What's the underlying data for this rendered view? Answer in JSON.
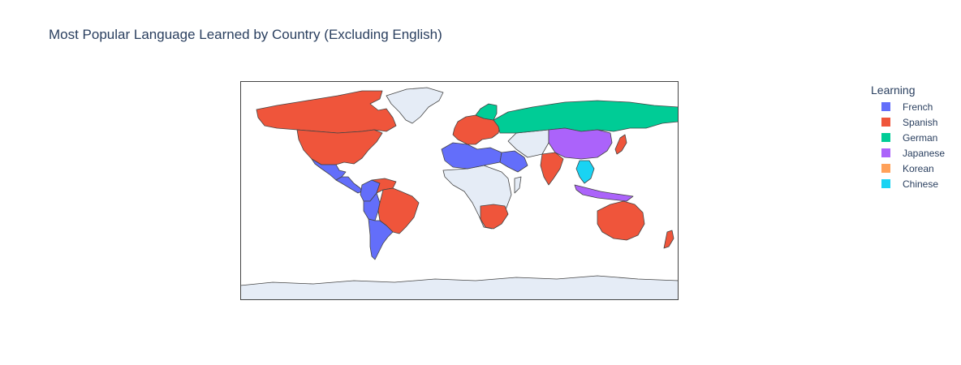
{
  "title": "Most Popular Language Learned by Country (Excluding English)",
  "legend": {
    "title": "Learning",
    "items": [
      {
        "label": "French",
        "color": "#636efa"
      },
      {
        "label": "Spanish",
        "color": "#ef553b"
      },
      {
        "label": "German",
        "color": "#00cc96"
      },
      {
        "label": "Japanese",
        "color": "#ab63fa"
      },
      {
        "label": "Korean",
        "color": "#ffa15a"
      },
      {
        "label": "Chinese",
        "color": "#19d3f3"
      }
    ]
  },
  "colors": {
    "no_data": "#e5ecf6",
    "border": "#444444",
    "frame": "#444444"
  },
  "map": {
    "projection": "equirectangular",
    "regions": [
      {
        "name": "Canada",
        "language": "Spanish"
      },
      {
        "name": "United States",
        "language": "Spanish"
      },
      {
        "name": "Mexico",
        "language": "French"
      },
      {
        "name": "Central America",
        "language": "French"
      },
      {
        "name": "Colombia",
        "language": "French"
      },
      {
        "name": "Venezuela",
        "language": "Spanish"
      },
      {
        "name": "Peru",
        "language": "French"
      },
      {
        "name": "Brazil",
        "language": "Spanish"
      },
      {
        "name": "Argentina",
        "language": "French"
      },
      {
        "name": "Greenland",
        "language": null
      },
      {
        "name": "Europe West",
        "language": "Spanish"
      },
      {
        "name": "Scandinavia",
        "language": "German"
      },
      {
        "name": "Russia",
        "language": "German"
      },
      {
        "name": "North Africa",
        "language": "French"
      },
      {
        "name": "Arabia",
        "language": "French"
      },
      {
        "name": "India",
        "language": "Spanish"
      },
      {
        "name": "China",
        "language": "Japanese"
      },
      {
        "name": "Japan",
        "language": "Spanish"
      },
      {
        "name": "Southeast Asia",
        "language": "Chinese"
      },
      {
        "name": "Indonesia",
        "language": "Japanese"
      },
      {
        "name": "Australia",
        "language": "Spanish"
      },
      {
        "name": "New Zealand",
        "language": "Spanish"
      },
      {
        "name": "South Africa",
        "language": "Spanish"
      },
      {
        "name": "Antarctica",
        "language": null
      }
    ]
  }
}
